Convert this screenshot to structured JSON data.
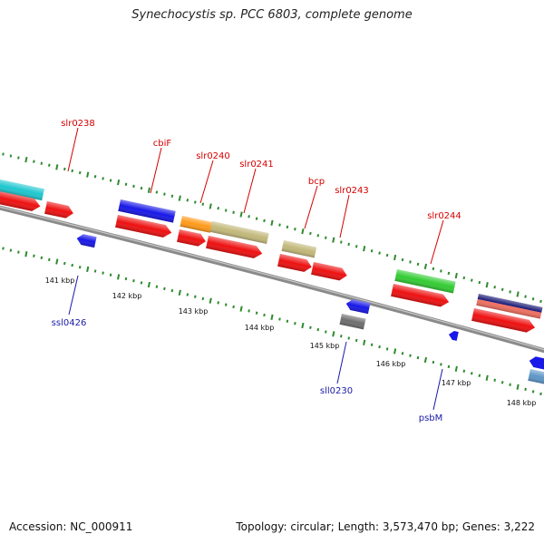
{
  "header": {
    "title": "Synechocystis sp. PCC 6803, complete genome"
  },
  "footer": {
    "accession": "Accession: NC_000911",
    "stats": "Topology: circular; Length: 3,573,470 bp; Genes: 3,222"
  },
  "kbp_labels": [
    "141 kbp",
    "142 kbp",
    "143 kbp",
    "144 kbp",
    "145 kbp",
    "146 kbp",
    "147 kbp",
    "148 kbp"
  ],
  "gene_labels_forward": [
    "slr0238",
    "cbiF",
    "slr0240",
    "slr0241",
    "bcp",
    "slr0243",
    "slr0244"
  ],
  "gene_labels_reverse": [
    "ssl0426",
    "sll0230",
    "psbM"
  ],
  "colors": {
    "forward_label": "#d40000",
    "reverse_label": "#1a1aa8",
    "cds": "#ee1111",
    "backbone": "#8a8a8a",
    "tick": "#2e8b2e"
  }
}
